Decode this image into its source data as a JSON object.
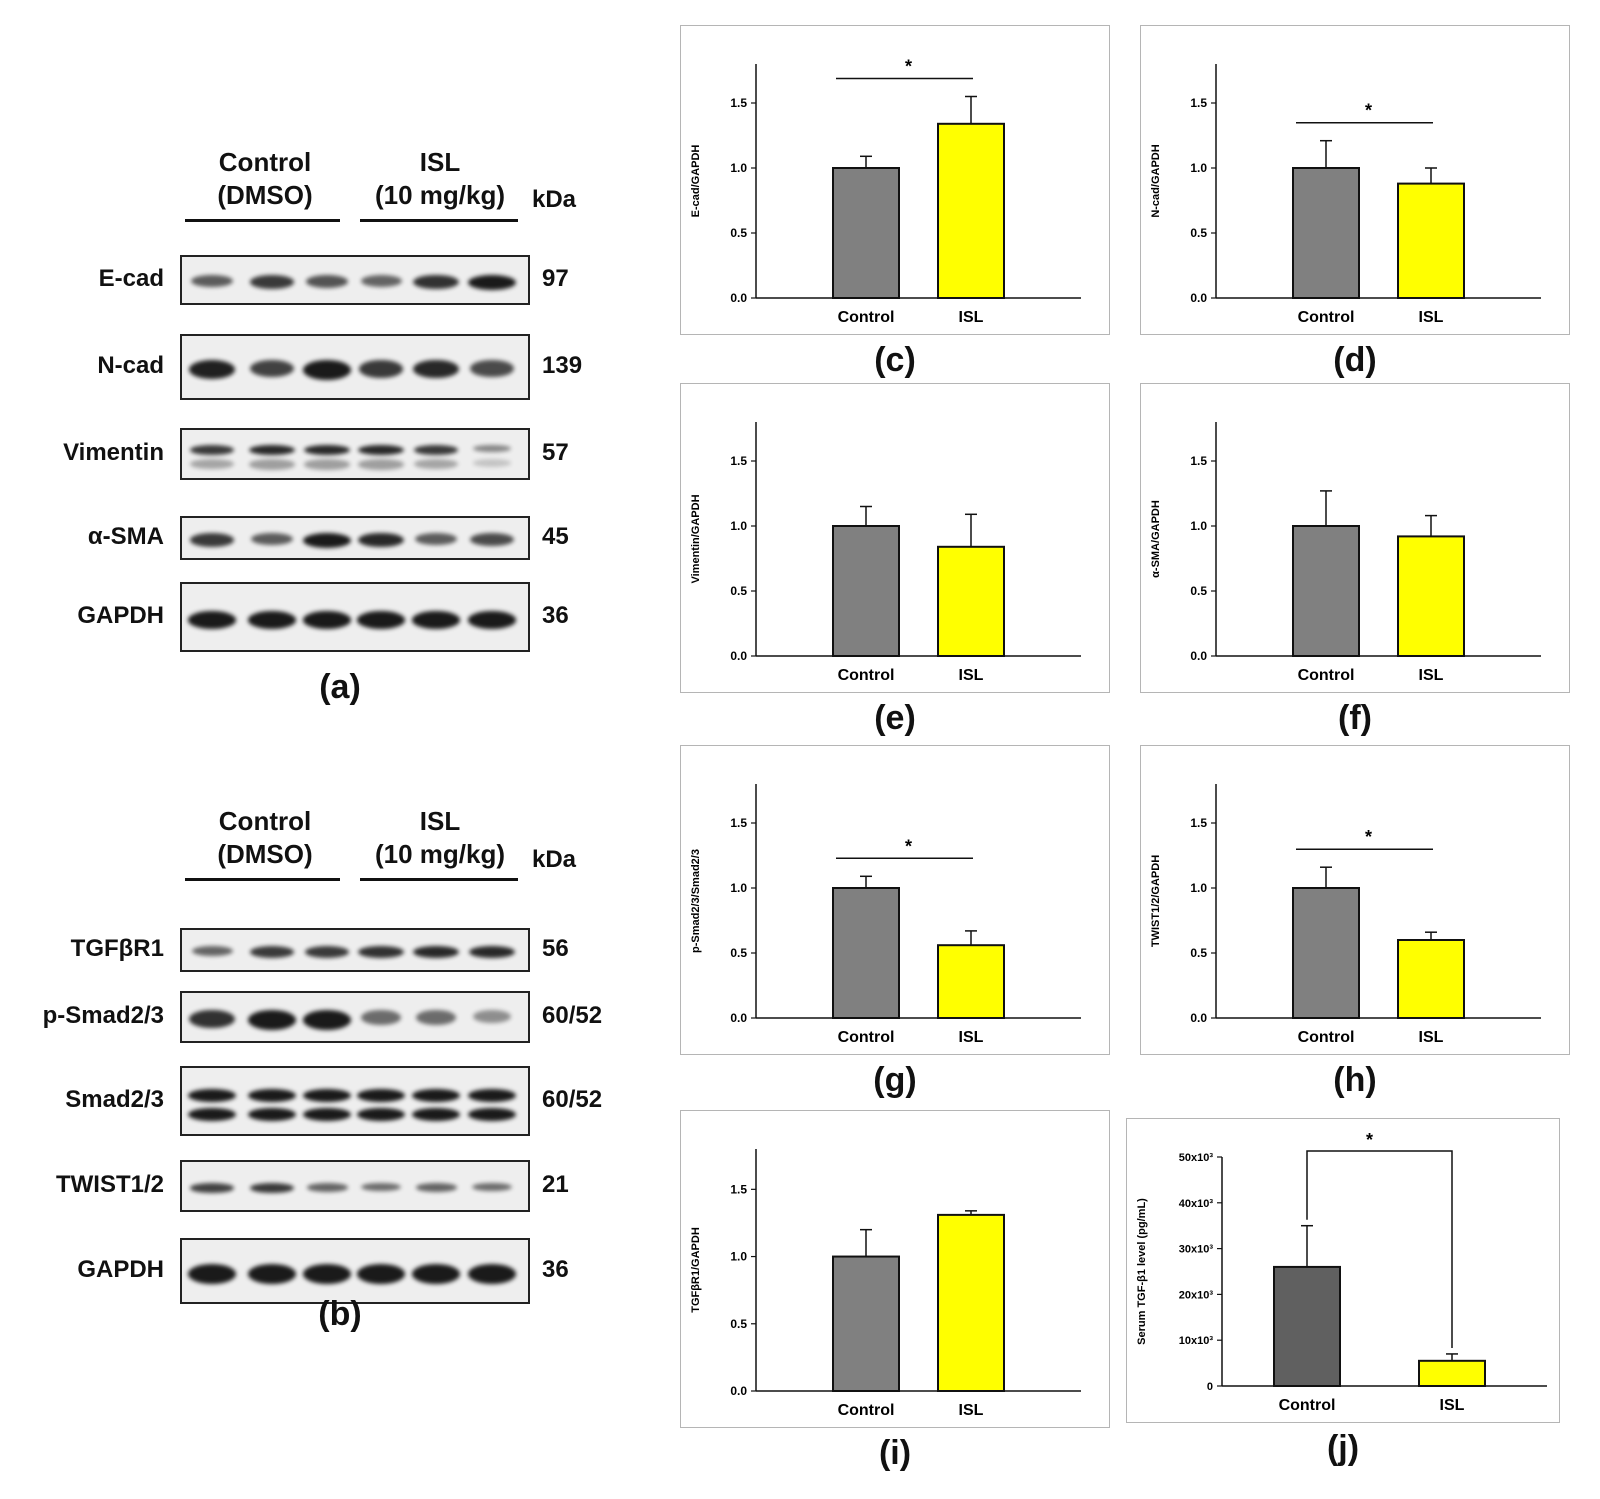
{
  "figure": {
    "panel_a": {
      "label": "(a)",
      "group_control": "Control\n(DMSO)",
      "group_isl": "ISL\n(10 mg/kg)",
      "kda_label": "kDa",
      "blots": [
        {
          "name": "E-cad",
          "mw": "97",
          "intensity": [
            0.55,
            0.75,
            0.6,
            0.5,
            0.8,
            1.0
          ],
          "double": false
        },
        {
          "name": "N-cad",
          "mw": "139",
          "intensity": [
            0.9,
            0.7,
            1.0,
            0.75,
            0.85,
            0.65
          ],
          "double": false
        },
        {
          "name": "Vimentin",
          "mw": "57",
          "intensity": [
            0.75,
            0.85,
            0.85,
            0.85,
            0.75,
            0.3
          ],
          "double": true
        },
        {
          "name": "α-SMA",
          "mw": "45",
          "intensity": [
            0.75,
            0.55,
            1.0,
            0.85,
            0.55,
            0.65
          ],
          "double": false
        },
        {
          "name": "GAPDH",
          "mw": "36",
          "intensity": [
            1.0,
            1.0,
            1.0,
            1.0,
            1.0,
            1.0
          ],
          "double": false
        }
      ]
    },
    "panel_b": {
      "label": "(b)",
      "group_control": "Control\n(DMSO)",
      "group_isl": "ISL\n(10 mg/kg)",
      "kda_label": "kDa",
      "blots": [
        {
          "name": "TGFβR1",
          "mw": "56",
          "intensity": [
            0.5,
            0.75,
            0.75,
            0.8,
            0.85,
            0.85
          ],
          "double": false
        },
        {
          "name": "p-Smad2/3",
          "mw": "60/52",
          "intensity": [
            0.8,
            1.0,
            1.0,
            0.45,
            0.45,
            0.25
          ],
          "double": false
        },
        {
          "name": "Smad2/3",
          "mw": "60/52",
          "intensity": [
            1.0,
            1.0,
            1.0,
            1.0,
            1.0,
            1.0
          ],
          "double": true
        },
        {
          "name": "TWIST1/2",
          "mw": "21",
          "intensity": [
            0.7,
            0.75,
            0.5,
            0.45,
            0.5,
            0.45
          ],
          "double": false
        },
        {
          "name": "GAPDH",
          "mw": "36",
          "intensity": [
            1.0,
            1.0,
            1.0,
            1.0,
            1.0,
            1.0
          ],
          "double": false
        }
      ]
    }
  },
  "chart_data": [
    {
      "id": "c",
      "panel_label": "(c)",
      "type": "bar",
      "ylabel": "E-cad/GAPDH",
      "categories": [
        "Control",
        "ISL"
      ],
      "values": [
        1.0,
        1.34
      ],
      "errors": [
        0.09,
        0.21
      ],
      "ylim": [
        0,
        1.8
      ],
      "yticks": [
        "0.0",
        "0.5",
        "1.0",
        "1.5"
      ],
      "ytick_values": [
        0,
        0.5,
        1.0,
        1.5
      ],
      "significance": "*",
      "colors": [
        "#808080",
        "#ffff00"
      ]
    },
    {
      "id": "d",
      "panel_label": "(d)",
      "type": "bar",
      "ylabel": "N-cad/GAPDH",
      "categories": [
        "Control",
        "ISL"
      ],
      "values": [
        1.0,
        0.88
      ],
      "errors": [
        0.21,
        0.12
      ],
      "ylim": [
        0,
        1.8
      ],
      "yticks": [
        "0.0",
        "0.5",
        "1.0",
        "1.5"
      ],
      "ytick_values": [
        0,
        0.5,
        1.0,
        1.5
      ],
      "significance": "*",
      "colors": [
        "#808080",
        "#ffff00"
      ]
    },
    {
      "id": "e",
      "panel_label": "(e)",
      "type": "bar",
      "ylabel": "Vimentin/GAPDH",
      "categories": [
        "Control",
        "ISL"
      ],
      "values": [
        1.0,
        0.84
      ],
      "errors": [
        0.15,
        0.25
      ],
      "ylim": [
        0,
        1.8
      ],
      "yticks": [
        "0.0",
        "0.5",
        "1.0",
        "1.5"
      ],
      "ytick_values": [
        0,
        0.5,
        1.0,
        1.5
      ],
      "significance": "",
      "colors": [
        "#808080",
        "#ffff00"
      ]
    },
    {
      "id": "f",
      "panel_label": "(f)",
      "type": "bar",
      "ylabel": "α-SMA/GAPDH",
      "categories": [
        "Control",
        "ISL"
      ],
      "values": [
        1.0,
        0.92
      ],
      "errors": [
        0.27,
        0.16
      ],
      "ylim": [
        0,
        1.8
      ],
      "yticks": [
        "0.0",
        "0.5",
        "1.0",
        "1.5"
      ],
      "ytick_values": [
        0,
        0.5,
        1.0,
        1.5
      ],
      "significance": "",
      "colors": [
        "#808080",
        "#ffff00"
      ]
    },
    {
      "id": "g",
      "panel_label": "(g)",
      "type": "bar",
      "ylabel": "p-Smad2/3/Smad2/3",
      "categories": [
        "Control",
        "ISL"
      ],
      "values": [
        1.0,
        0.56
      ],
      "errors": [
        0.09,
        0.11
      ],
      "ylim": [
        0,
        1.8
      ],
      "yticks": [
        "0.0",
        "0.5",
        "1.0",
        "1.5"
      ],
      "ytick_values": [
        0,
        0.5,
        1.0,
        1.5
      ],
      "significance": "*",
      "colors": [
        "#808080",
        "#ffff00"
      ]
    },
    {
      "id": "h",
      "panel_label": "(h)",
      "type": "bar",
      "ylabel": "TWIST1/2/GAPDH",
      "categories": [
        "Control",
        "ISL"
      ],
      "values": [
        1.0,
        0.6
      ],
      "errors": [
        0.16,
        0.06
      ],
      "ylim": [
        0,
        1.8
      ],
      "yticks": [
        "0.0",
        "0.5",
        "1.0",
        "1.5"
      ],
      "ytick_values": [
        0,
        0.5,
        1.0,
        1.5
      ],
      "significance": "*",
      "colors": [
        "#808080",
        "#ffff00"
      ]
    },
    {
      "id": "i",
      "panel_label": "(i)",
      "type": "bar",
      "ylabel": "TGFβR1/GAPDH",
      "categories": [
        "Control",
        "ISL"
      ],
      "values": [
        1.0,
        1.31
      ],
      "errors": [
        0.2,
        0.03
      ],
      "ylim": [
        0,
        1.8
      ],
      "yticks": [
        "0.0",
        "0.5",
        "1.0",
        "1.5"
      ],
      "ytick_values": [
        0,
        0.5,
        1.0,
        1.5
      ],
      "significance": "",
      "colors": [
        "#808080",
        "#ffff00"
      ]
    },
    {
      "id": "j",
      "panel_label": "(j)",
      "type": "bar",
      "ylabel": "Serum TGF-β1 level (pg/mL)",
      "categories": [
        "Control",
        "ISL"
      ],
      "values": [
        26000,
        5500
      ],
      "errors": [
        9000,
        1500
      ],
      "ylim": [
        0,
        50000
      ],
      "yticks": [
        "0",
        "10x10³",
        "20x10³",
        "30x10³",
        "40x10³",
        "50x10³"
      ],
      "ytick_values": [
        0,
        10000,
        20000,
        30000,
        40000,
        50000
      ],
      "significance": "*",
      "colors": [
        "#606060",
        "#ffff00"
      ],
      "bracket": true
    }
  ]
}
